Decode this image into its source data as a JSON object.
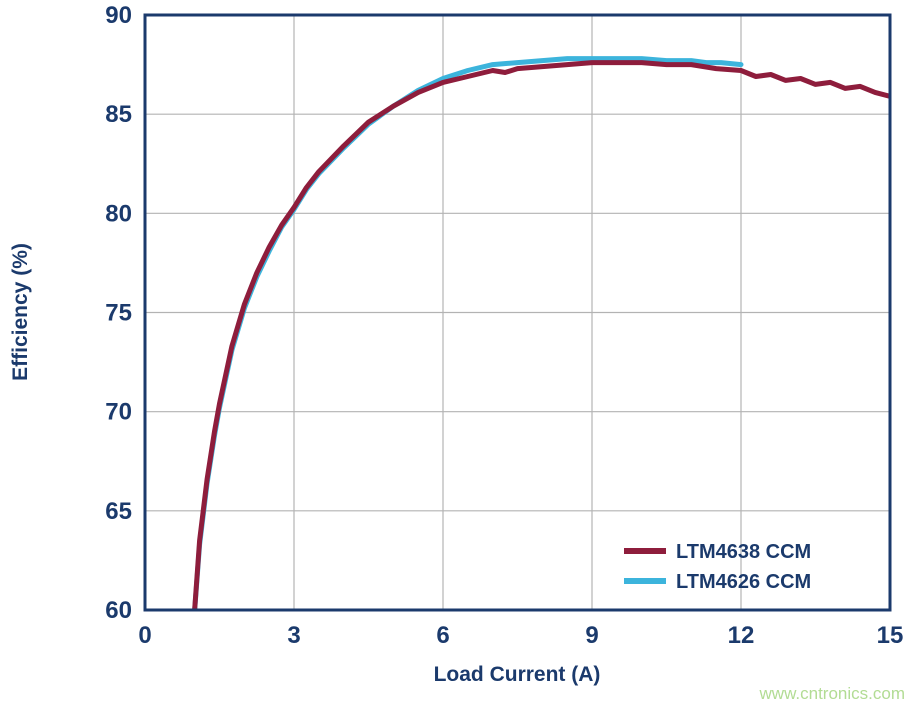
{
  "watermark": "www.cntronics.com",
  "colors": {
    "axis_text": "#1b3a6c",
    "plot_border": "#1b3a6c",
    "grid": "#b3b3b3",
    "watermark": "#b2dc94",
    "background": "#ffffff"
  },
  "chart_data": {
    "type": "line",
    "title": "",
    "xlabel": "Load Current (A)",
    "ylabel": "Efficiency (%)",
    "xlim": [
      0,
      15
    ],
    "ylim": [
      60,
      90
    ],
    "xticks": [
      0,
      3,
      6,
      9,
      12,
      15
    ],
    "yticks": [
      60,
      65,
      70,
      75,
      80,
      85,
      90
    ],
    "grid": true,
    "legend_position": "lower right",
    "series": [
      {
        "name": "LTM4626 CCM",
        "color": "#3cb4dc",
        "x": [
          0.97,
          1.1,
          1.25,
          1.4,
          1.5,
          1.75,
          2,
          2.25,
          2.5,
          2.75,
          3,
          3.25,
          3.5,
          4,
          4.5,
          5,
          5.5,
          6,
          6.5,
          7,
          7.5,
          8,
          8.5,
          9,
          9.5,
          10,
          10.5,
          11,
          11.3,
          11.6,
          12
        ],
        "y": [
          59.0,
          63.3,
          66.4,
          68.8,
          70.2,
          73.1,
          75.2,
          76.8,
          78.1,
          79.3,
          80.2,
          81.2,
          82.0,
          83.3,
          84.5,
          85.4,
          86.2,
          86.8,
          87.2,
          87.5,
          87.6,
          87.7,
          87.8,
          87.8,
          87.8,
          87.8,
          87.7,
          87.7,
          87.6,
          87.6,
          87.5
        ]
      },
      {
        "name": "LTM4638 CCM",
        "color": "#8e1d3c",
        "x": [
          0.97,
          1.1,
          1.25,
          1.4,
          1.5,
          1.75,
          2,
          2.25,
          2.5,
          2.75,
          3,
          3.25,
          3.5,
          4,
          4.5,
          5,
          5.5,
          6,
          6.5,
          7,
          7.25,
          7.5,
          8,
          8.5,
          9,
          9.5,
          10,
          10.5,
          11,
          11.5,
          12,
          12.3,
          12.6,
          12.9,
          13.2,
          13.5,
          13.8,
          14.1,
          14.4,
          14.7,
          15
        ],
        "y": [
          59.0,
          63.5,
          66.6,
          69.0,
          70.4,
          73.3,
          75.4,
          77.0,
          78.3,
          79.4,
          80.3,
          81.3,
          82.1,
          83.4,
          84.6,
          85.4,
          86.1,
          86.6,
          86.9,
          87.2,
          87.1,
          87.3,
          87.4,
          87.5,
          87.6,
          87.6,
          87.6,
          87.5,
          87.5,
          87.3,
          87.2,
          86.9,
          87.0,
          86.7,
          86.8,
          86.5,
          86.6,
          86.3,
          86.4,
          86.1,
          85.9
        ]
      }
    ],
    "legend_entries": [
      "LTM4638 CCM",
      "LTM4626 CCM"
    ]
  }
}
